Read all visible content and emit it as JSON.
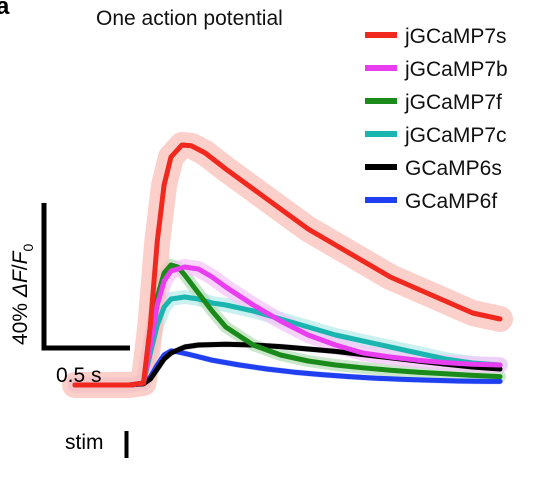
{
  "chart_data": {
    "type": "line",
    "panel_label": "a",
    "title": "One action potential",
    "x_unit": "s",
    "xlim": [
      -0.5,
      2.6
    ],
    "ylim": [
      -5,
      75
    ],
    "scale_bars": {
      "x": {
        "label": "0.5 s",
        "value": 0.5
      },
      "y": {
        "prefix": "40% ",
        "delta": "Δ",
        "F": "F",
        "slash": "/",
        "F0": "F",
        "sub": "0",
        "value": 40
      }
    },
    "stim": {
      "label": "stim",
      "time": 0.0
    },
    "series": [
      {
        "name": "jGCaMP7s",
        "color": "#f0281e",
        "band_color": "#f9c0b8",
        "x": [
          -0.5,
          -0.3,
          -0.1,
          0,
          0.05,
          0.1,
          0.15,
          0.2,
          0.28,
          0.35,
          0.45,
          0.6,
          0.8,
          1.0,
          1.2,
          1.4,
          1.6,
          1.8,
          2.0,
          2.2,
          2.4,
          2.6
        ],
        "y": [
          0,
          0,
          0,
          0.5,
          15,
          36,
          50,
          57,
          60,
          59.8,
          58,
          54,
          49,
          44,
          39,
          35,
          31,
          27,
          24,
          21,
          18,
          16.5
        ]
      },
      {
        "name": "jGCaMP7b",
        "color": "#e83ef0",
        "band_color": "#f5c6f8",
        "x": [
          -0.5,
          -0.3,
          -0.1,
          0,
          0.05,
          0.1,
          0.15,
          0.2,
          0.3,
          0.4,
          0.5,
          0.6,
          0.8,
          1.0,
          1.2,
          1.4,
          1.6,
          1.8,
          2.0,
          2.2,
          2.4,
          2.6
        ],
        "y": [
          0,
          0,
          0,
          0.5,
          10,
          20,
          26,
          28.5,
          29.5,
          29,
          27,
          24.5,
          20,
          16,
          12.5,
          10,
          8,
          7,
          6.2,
          5.6,
          5.2,
          5
        ]
      },
      {
        "name": "jGCaMP7f",
        "color": "#1a8a1a",
        "band_color": "#b9dfb9",
        "x": [
          -0.5,
          -0.3,
          -0.1,
          0,
          0.05,
          0.1,
          0.15,
          0.2,
          0.25,
          0.3,
          0.4,
          0.5,
          0.6,
          0.8,
          1.0,
          1.2,
          1.4,
          1.6,
          1.8,
          2.0,
          2.2,
          2.4,
          2.6
        ],
        "y": [
          0,
          0,
          0,
          0.5,
          12,
          22,
          28,
          30,
          29.5,
          27.5,
          23,
          18.5,
          14.5,
          10,
          7.5,
          6,
          5,
          4.3,
          3.7,
          3.2,
          2.8,
          2.4,
          2.1
        ]
      },
      {
        "name": "jGCaMP7c",
        "color": "#1bb5b0",
        "band_color": "#b8ecea",
        "x": [
          -0.5,
          -0.3,
          -0.1,
          0,
          0.05,
          0.1,
          0.15,
          0.2,
          0.3,
          0.4,
          0.5,
          0.6,
          0.8,
          1.0,
          1.2,
          1.4,
          1.6,
          1.8,
          2.0,
          2.2,
          2.4,
          2.6
        ],
        "y": [
          0,
          0,
          0,
          0.5,
          8,
          15,
          19.5,
          21.5,
          22,
          21.5,
          20.5,
          20,
          18.5,
          16.5,
          14.5,
          12.5,
          11,
          9.5,
          8,
          6.5,
          5.5,
          5
        ]
      },
      {
        "name": "GCaMP6s",
        "color": "#000000",
        "band_color": "#cccccc",
        "x": [
          -0.5,
          -0.3,
          -0.1,
          0,
          0.05,
          0.1,
          0.15,
          0.2,
          0.3,
          0.4,
          0.6,
          0.8,
          1.0,
          1.2,
          1.4,
          1.6,
          1.8,
          2.0,
          2.2,
          2.4,
          2.6
        ],
        "y": [
          0,
          0,
          0,
          0.3,
          1.5,
          4,
          6.5,
          8,
          9.5,
          10,
          10.2,
          10,
          9.6,
          9,
          8.4,
          7.6,
          6.8,
          6,
          5.2,
          4.5,
          4
        ]
      },
      {
        "name": "GCaMP6f",
        "color": "#1f3ff0",
        "band_color": "#c3ccfa",
        "x": [
          -0.5,
          -0.3,
          -0.1,
          0,
          0.05,
          0.1,
          0.15,
          0.2,
          0.25,
          0.35,
          0.5,
          0.7,
          0.9,
          1.1,
          1.3,
          1.5,
          1.7,
          1.9,
          2.1,
          2.3,
          2.5,
          2.6
        ],
        "y": [
          0,
          0,
          0,
          0.3,
          2,
          5,
          7.5,
          8.5,
          8.3,
          7.5,
          6.2,
          5,
          4,
          3.2,
          2.6,
          2.1,
          1.7,
          1.4,
          1.2,
          1.0,
          0.9,
          0.9
        ]
      }
    ]
  }
}
